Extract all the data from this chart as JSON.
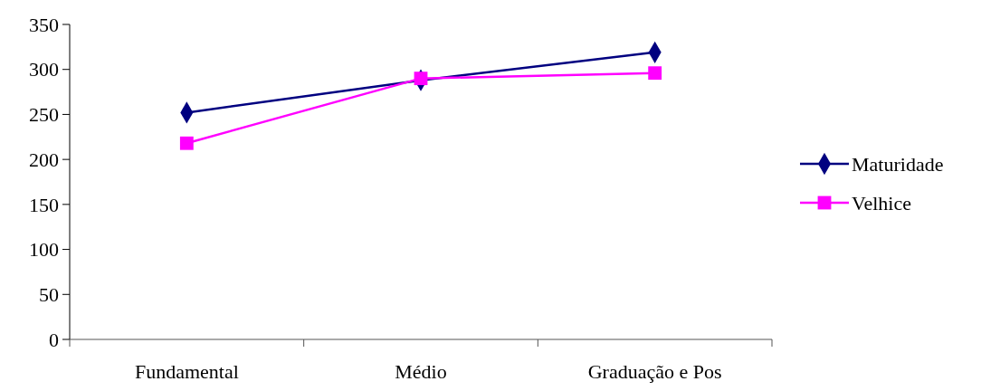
{
  "chart_data": {
    "type": "line",
    "categories": [
      "Fundamental",
      "Médio",
      "Graduação e Pos"
    ],
    "ylim": [
      0,
      350
    ],
    "yticks": [
      0,
      50,
      100,
      150,
      200,
      250,
      300,
      350
    ],
    "legend": "right",
    "line_style": "solid",
    "series": [
      {
        "name": "Maturidade",
        "color": "#000080",
        "marker": "diamond",
        "values": [
          252,
          288,
          319
        ]
      },
      {
        "name": "Velhice",
        "color": "#ff00ff",
        "marker": "square",
        "values": [
          218,
          290,
          296
        ]
      }
    ]
  }
}
